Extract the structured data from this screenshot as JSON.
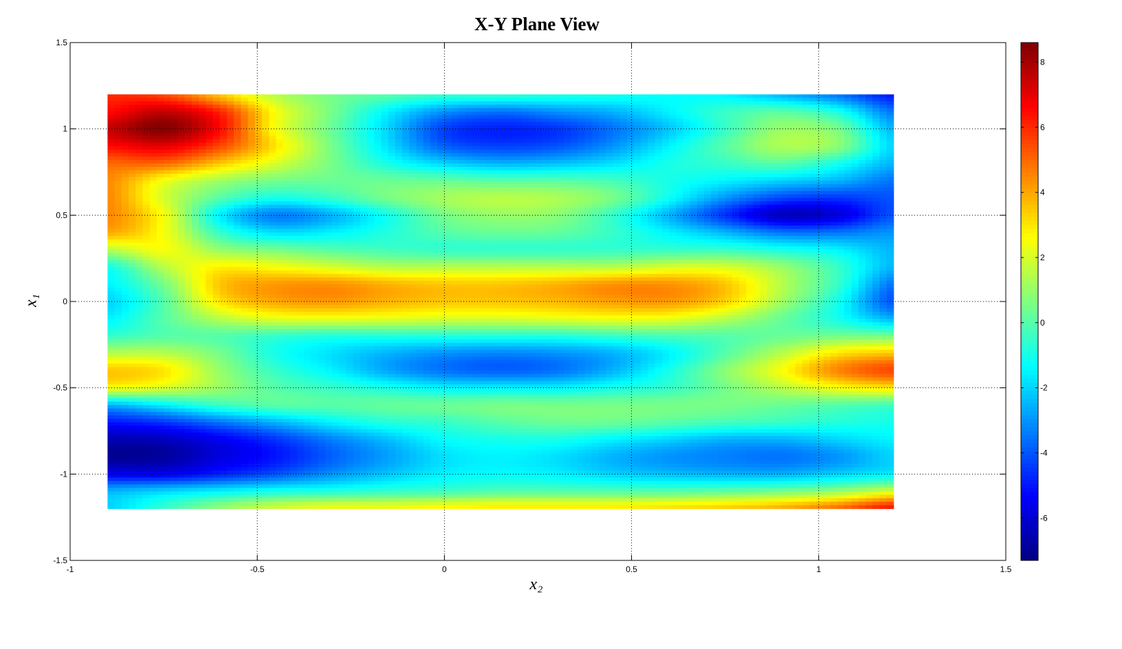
{
  "chart_data": {
    "type": "heatmap",
    "title": "X-Y Plane View",
    "xlabel": "x₂",
    "ylabel": "x₁",
    "xlim": [
      -1,
      1.5
    ],
    "ylim": [
      -1.5,
      1.5
    ],
    "xticks": [
      "-1",
      "-0.5",
      "0",
      "0.5",
      "1",
      "1.5"
    ],
    "yticks": [
      "-1.5",
      "-1",
      "-0.5",
      "0",
      "0.5",
      "1",
      "1.5"
    ],
    "grid": true,
    "colormap": "jet",
    "colorbar": {
      "position": "right",
      "clim": [
        -7.3,
        8.6
      ],
      "ticks": [
        "-6",
        "-4",
        "-2",
        "0",
        "2",
        "4",
        "6",
        "8"
      ]
    },
    "x": [
      -0.9,
      -0.75,
      -0.6,
      -0.45,
      -0.3,
      -0.15,
      0,
      0.15,
      0.3,
      0.45,
      0.6,
      0.75,
      0.9,
      1.05,
      1.2
    ],
    "y": [
      1.2,
      1.1,
      1.0,
      0.9,
      0.8,
      0.7,
      0.6,
      0.5,
      0.4,
      0.3,
      0.2,
      0.1,
      0,
      -0.1,
      -0.2,
      -0.3,
      -0.4,
      -0.5,
      -0.6,
      -0.7,
      -0.8,
      -0.9,
      -1.0,
      -1.1,
      -1.2
    ],
    "z": [
      [
        6,
        5.5,
        3.5,
        1.5,
        0.5,
        0,
        -0.5,
        -0.5,
        -0.8,
        -1.0,
        -1.3,
        -1.5,
        -2.5,
        -3.5,
        -5
      ],
      [
        6.5,
        7.5,
        6,
        2.5,
        0.5,
        -1.5,
        -3,
        -3.5,
        -3,
        -2.5,
        -1.5,
        -0.5,
        0,
        -1,
        -3.5
      ],
      [
        7.5,
        8.5,
        6.5,
        2.5,
        0.3,
        -2,
        -4.3,
        -4.8,
        -4.5,
        -3.5,
        -2.2,
        -0.5,
        1.0,
        0.5,
        -2.5
      ],
      [
        6.5,
        7,
        5.5,
        3,
        0.5,
        -1.8,
        -3.8,
        -4.3,
        -4,
        -3,
        -1.5,
        0,
        1.3,
        0.8,
        -2
      ],
      [
        5,
        5,
        3.5,
        2,
        0.5,
        -1,
        -2,
        -2.5,
        -2.3,
        -1.8,
        -1,
        -0.5,
        0,
        -1,
        -2.5
      ],
      [
        4.5,
        2.5,
        1.2,
        0.5,
        0.3,
        0.3,
        0.2,
        0,
        0,
        -0.3,
        -1,
        -1.5,
        -2,
        -2.5,
        -3.5
      ],
      [
        4.5,
        2,
        0,
        -1,
        -0.5,
        0.5,
        1.2,
        1.5,
        1.3,
        0.5,
        -1.2,
        -3,
        -4.2,
        -4.5,
        -4
      ],
      [
        4.5,
        2.5,
        -1.5,
        -3.3,
        -2.5,
        -1,
        0.5,
        1,
        0.8,
        -0.5,
        -2.5,
        -4.5,
        -6.2,
        -5.8,
        -4
      ],
      [
        4,
        2.5,
        -0.5,
        -1.8,
        -1.5,
        -0.8,
        0,
        0.3,
        0.2,
        -0.5,
        -1.5,
        -2.5,
        -3.5,
        -3.5,
        -3
      ],
      [
        1.5,
        2.5,
        1,
        0.5,
        0,
        -0.3,
        -0.5,
        -0.5,
        -0.5,
        -0.5,
        -0.5,
        -0.5,
        -1,
        -1.5,
        -2.5
      ],
      [
        -1,
        1.5,
        2.8,
        2.5,
        2,
        1.5,
        1.5,
        1.5,
        1.5,
        1.5,
        2,
        2,
        1,
        -0.5,
        -2.5
      ],
      [
        -1.5,
        0.5,
        3.5,
        4.2,
        4.3,
        3.8,
        3.5,
        3.5,
        3.8,
        4.3,
        4.3,
        3.5,
        1.5,
        -0.5,
        -3.5
      ],
      [
        -2,
        0,
        3,
        4,
        4.2,
        3.8,
        3.5,
        3.5,
        3.7,
        4.1,
        4.2,
        3.3,
        1.2,
        -1,
        -4
      ],
      [
        -1.5,
        0,
        1.5,
        2.2,
        2.3,
        2.2,
        2,
        2,
        2.2,
        2.4,
        2.3,
        1.5,
        0.3,
        -1,
        -2.5
      ],
      [
        -0.5,
        0,
        0,
        -0.5,
        -0.8,
        -0.8,
        -0.8,
        -0.8,
        -0.8,
        -0.5,
        -0.2,
        0,
        0.3,
        0.5,
        0.5
      ],
      [
        1.5,
        1.5,
        0.5,
        -1,
        -1.8,
        -2.5,
        -3,
        -3.2,
        -3,
        -2.5,
        -1.5,
        0,
        1.5,
        3,
        3.5
      ],
      [
        3.5,
        3,
        1,
        -0.5,
        -1.5,
        -2.7,
        -3.5,
        -3.8,
        -3.5,
        -2.5,
        -1.0,
        0.8,
        2.5,
        4.5,
        5.5
      ],
      [
        2.5,
        2,
        1,
        0,
        -0.5,
        -1,
        -1.5,
        -1.5,
        -1.5,
        -1,
        -0.5,
        0.5,
        1.5,
        2.5,
        3
      ],
      [
        -2.5,
        -1.5,
        -0.5,
        0,
        0,
        0.2,
        0.3,
        0.5,
        0.5,
        0.5,
        0.5,
        0.5,
        0.3,
        0,
        -0.3
      ],
      [
        -5,
        -4.5,
        -3.5,
        -2.5,
        -1.5,
        -0.8,
        -0.5,
        0,
        0.3,
        0.3,
        0,
        -0.3,
        -0.5,
        -0.8,
        -1
      ],
      [
        -6.5,
        -6.3,
        -5.5,
        -4.5,
        -3.3,
        -2.3,
        -1.3,
        -1,
        -1,
        -1.5,
        -2,
        -2.5,
        -2.5,
        -2,
        -1.5
      ],
      [
        -7,
        -6.8,
        -5.8,
        -5,
        -3.8,
        -2.8,
        -1.8,
        -1.5,
        -1.8,
        -2.5,
        -3,
        -3.3,
        -3.5,
        -3,
        -2
      ],
      [
        -5.5,
        -5.5,
        -4.8,
        -4,
        -3,
        -2.2,
        -1.5,
        -1.3,
        -1.5,
        -2,
        -2.3,
        -2.5,
        -2.5,
        -2,
        -1.5
      ],
      [
        -2.5,
        -2,
        -1.5,
        -1,
        -0.8,
        -0.5,
        -0.3,
        0,
        0,
        0,
        0,
        0.2,
        0.5,
        1,
        2
      ],
      [
        -2,
        -0.5,
        1,
        2,
        2.5,
        2.5,
        2.8,
        3,
        3,
        3,
        3.2,
        3.5,
        4,
        5,
        6.5
      ]
    ]
  }
}
